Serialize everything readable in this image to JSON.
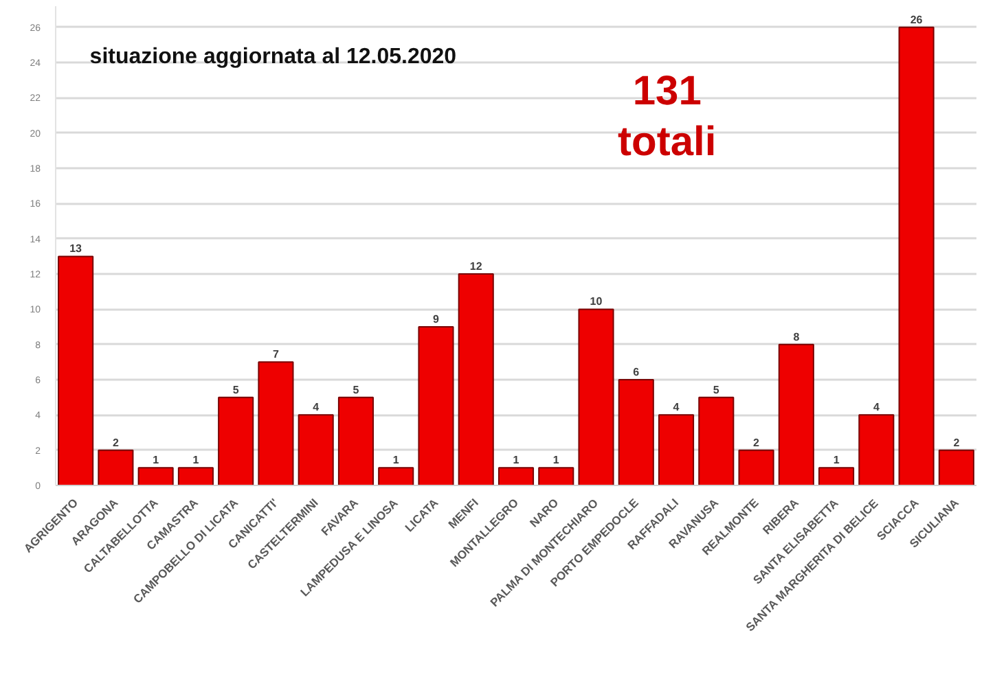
{
  "chart_data": {
    "type": "bar",
    "categories": [
      "AGRIGENTO",
      "ARAGONA",
      "CALTABELLOTTA",
      "CAMASTRA",
      "CAMPOBELLO DI LICATA",
      "CANICATTI'",
      "CASTELTERMINI",
      "FAVARA",
      "LAMPEDUSA E LINOSA",
      "LICATA",
      "MENFI",
      "MONTALLEGRO",
      "NARO",
      "PALMA DI MONTECHIARO",
      "PORTO EMPEDOCLE",
      "RAFFADALI",
      "RAVANUSA",
      "REALMONTE",
      "RIBERA",
      "SANTA ELISABETTA",
      "SANTA MARGHERITA DI BELICE",
      "SCIACCA",
      "SICULIANA"
    ],
    "values": [
      13,
      2,
      1,
      1,
      5,
      7,
      4,
      5,
      1,
      9,
      12,
      1,
      1,
      10,
      6,
      4,
      5,
      2,
      8,
      1,
      4,
      26,
      2
    ],
    "color": "#ee0000",
    "ylim": [
      0,
      27.2
    ],
    "yticks": [
      0,
      2,
      4,
      6,
      8,
      10,
      12,
      14,
      16,
      18,
      20,
      22,
      24,
      26
    ],
    "grid": "y",
    "data_labels": true,
    "annotations": [
      "situazione aggiornata al 12.05.2020",
      "131 totali"
    ]
  }
}
